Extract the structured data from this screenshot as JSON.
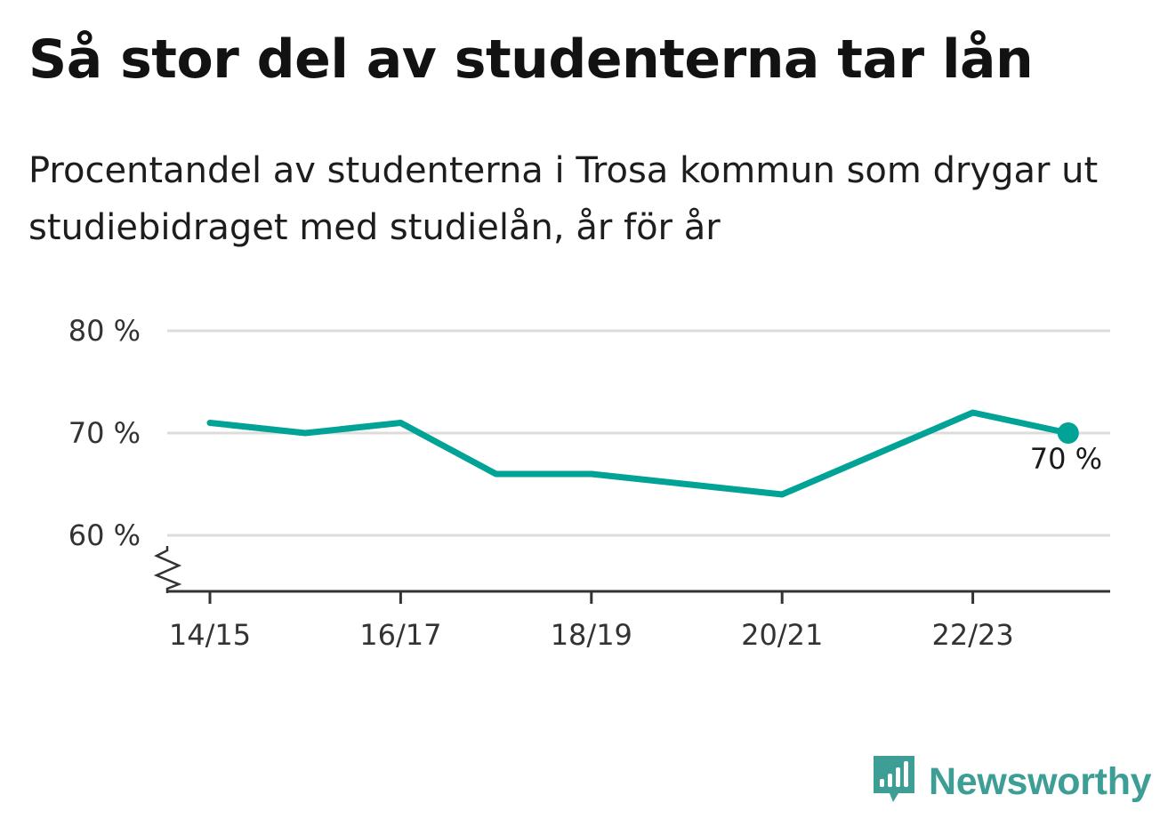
{
  "title": "Så stor del av studenterna tar lån",
  "subtitle": "Procentandel av studenterna i Trosa kommun som drygar ut studiebidraget med studielån, år för år",
  "brand": {
    "name": "Newsworthy",
    "color": "#3d9e95",
    "icon": "newsworthy-logo-icon"
  },
  "chart_data": {
    "type": "line",
    "x": [
      "14/15",
      "15/16",
      "16/17",
      "17/18",
      "18/19",
      "19/20",
      "20/21",
      "21/22",
      "22/23",
      "23/24"
    ],
    "series": [
      {
        "values": [
          71,
          70,
          71,
          66,
          66,
          65,
          64,
          68,
          72,
          70
        ],
        "color": "#00a396"
      }
    ],
    "x_tick_labels": [
      "14/15",
      "16/17",
      "18/19",
      "20/21",
      "22/23"
    ],
    "y_ticks": [
      60,
      70,
      80
    ],
    "y_tick_labels": [
      "60 %",
      "70 %",
      "80 %"
    ],
    "ylim": [
      54.5,
      80
    ],
    "y_axis_break": true,
    "grid": true,
    "end_label": "70 %"
  }
}
